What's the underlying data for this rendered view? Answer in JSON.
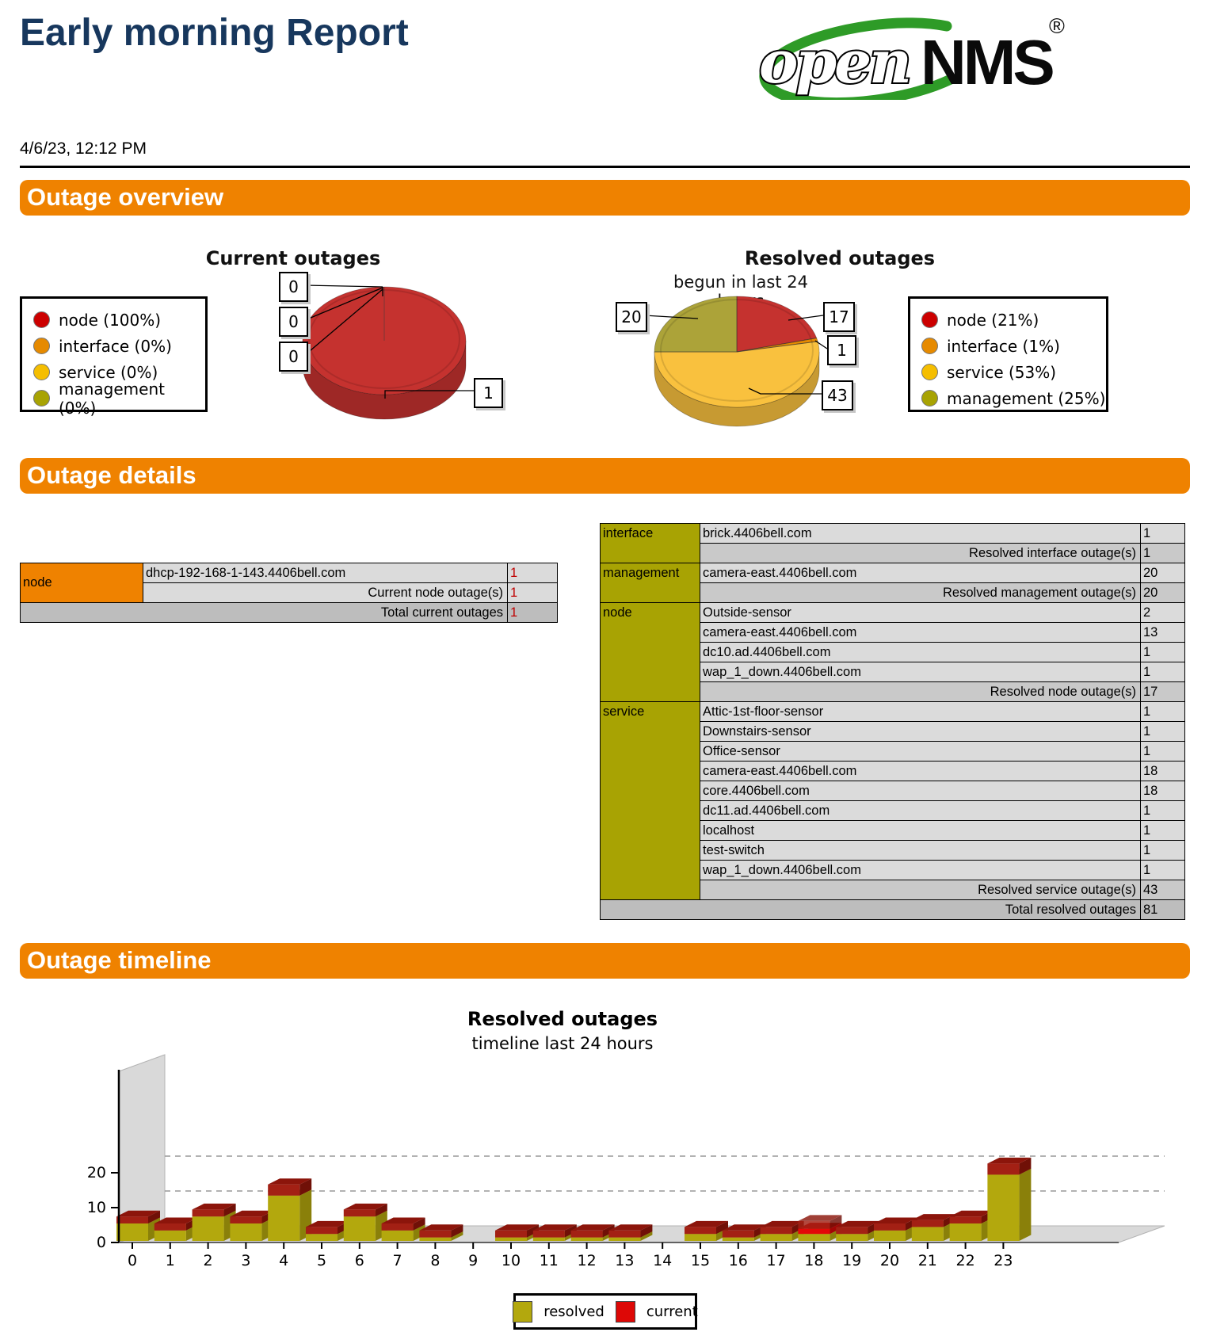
{
  "report": {
    "title": "Early morning Report",
    "date": "4/6/23, 12:12 PM",
    "brand": {
      "open": "open",
      "nms": "NMS",
      "reg": "®"
    }
  },
  "sections": {
    "overview": "Outage overview",
    "details": "Outage details",
    "timeline": "Outage timeline"
  },
  "palette": {
    "orange": "#EF8200",
    "title_navy": "#17375D",
    "node": "#CC0000",
    "interface": "#E68A00",
    "service": "#F5BE00",
    "management": "#A8A303",
    "pie_node": "#C5322F",
    "pie_interface": "#E68A00",
    "pie_service": "#F9C13E",
    "pie_management": "#ACA339",
    "bar_resolved": "#B3A80D",
    "bar_current": "#DD0806",
    "cap_red": "#A32014"
  },
  "current_table": {
    "category": "node",
    "rows": [
      {
        "name": "dhcp-192-168-1-143.4406bell.com",
        "value": "1"
      }
    ],
    "subtotal_label": "Current node outage(s)",
    "subtotal_value": "1",
    "total_label": "Total current outages",
    "total_value": "1"
  },
  "resolved_table": {
    "groups": [
      {
        "category": "interface",
        "rows": [
          [
            "brick.4406bell.com",
            "1"
          ]
        ],
        "subtotal_label": "Resolved interface outage(s)",
        "subtotal_value": "1"
      },
      {
        "category": "management",
        "rows": [
          [
            "camera-east.4406bell.com",
            "20"
          ]
        ],
        "subtotal_label": "Resolved management outage(s)",
        "subtotal_value": "20"
      },
      {
        "category": "node",
        "rows": [
          [
            "Outside-sensor",
            "2"
          ],
          [
            "camera-east.4406bell.com",
            "13"
          ],
          [
            "dc10.ad.4406bell.com",
            "1"
          ],
          [
            "wap_1_down.4406bell.com",
            "1"
          ]
        ],
        "subtotal_label": "Resolved node outage(s)",
        "subtotal_value": "17"
      },
      {
        "category": "service",
        "rows": [
          [
            "Attic-1st-floor-sensor",
            "1"
          ],
          [
            "Downstairs-sensor",
            "1"
          ],
          [
            "Office-sensor",
            "1"
          ],
          [
            "camera-east.4406bell.com",
            "18"
          ],
          [
            "core.4406bell.com",
            "18"
          ],
          [
            "dc11.ad.4406bell.com",
            "1"
          ],
          [
            "localhost",
            "1"
          ],
          [
            "test-switch",
            "1"
          ],
          [
            "wap_1_down.4406bell.com",
            "1"
          ]
        ],
        "subtotal_label": "Resolved service outage(s)",
        "subtotal_value": "43"
      }
    ],
    "total_label": "Total resolved outages",
    "total_value": "81"
  },
  "chart_data": [
    {
      "type": "pie",
      "title": "Current outages",
      "legend_position": "left",
      "slices": [
        {
          "label": "node",
          "pct": 100,
          "count": "1"
        },
        {
          "label": "interface",
          "pct": 0,
          "count": "0"
        },
        {
          "label": "service",
          "pct": 0,
          "count": "0"
        },
        {
          "label": "management",
          "pct": 0,
          "count": "0"
        }
      ]
    },
    {
      "type": "pie",
      "title": "Resolved outages",
      "subtitle": "begun in last 24 hours",
      "legend_position": "right",
      "slices": [
        {
          "label": "node",
          "pct": 21,
          "count": "17"
        },
        {
          "label": "interface",
          "pct": 1,
          "count": "1"
        },
        {
          "label": "service",
          "pct": 53,
          "count": "43"
        },
        {
          "label": "management",
          "pct": 25,
          "count": "20"
        }
      ]
    },
    {
      "type": "bar",
      "title": "Resolved outages",
      "subtitle": "timeline last 24 hours",
      "categories": [
        0,
        1,
        2,
        3,
        4,
        5,
        6,
        7,
        8,
        9,
        10,
        11,
        12,
        13,
        14,
        15,
        16,
        17,
        18,
        19,
        20,
        21,
        22,
        23
      ],
      "series": [
        {
          "name": "resolved",
          "values": [
            5,
            3,
            7,
            5,
            13,
            2,
            7,
            3,
            1,
            0,
            1,
            1,
            1,
            1,
            0,
            2,
            1,
            2,
            2,
            2,
            3,
            4,
            5,
            19
          ]
        },
        {
          "name": "current",
          "values": [
            0,
            0,
            0,
            0,
            0,
            0,
            0,
            0,
            0,
            0,
            0,
            0,
            0,
            0,
            0,
            0,
            0,
            0,
            1,
            0,
            0,
            0,
            0,
            0
          ]
        }
      ],
      "yticks": [
        0,
        10,
        20
      ],
      "ylim": [
        0,
        25
      ],
      "grid": "dashed",
      "legend": [
        "resolved",
        "current"
      ],
      "legend_position": "bottom"
    }
  ]
}
